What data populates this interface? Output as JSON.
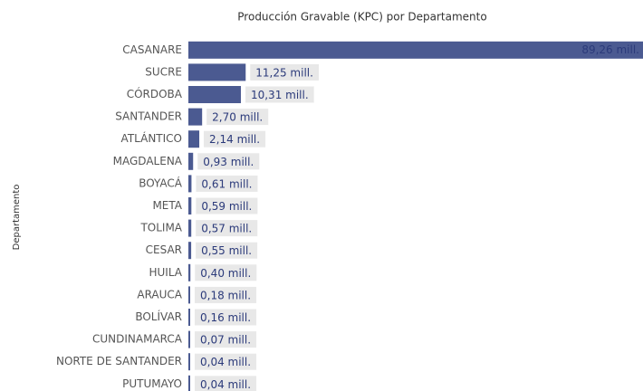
{
  "chart_data": {
    "type": "bar",
    "orientation": "horizontal",
    "title": "Producción Gravable (KPC) por Departamento",
    "y_label": "Departamento",
    "categories": [
      "CASANARE",
      "SUCRE",
      "CÓRDOBA",
      "SANTANDER",
      "ATLÁNTICO",
      "MAGDALENA",
      "BOYACÁ",
      "META",
      "TOLIMA",
      "CESAR",
      "HUILA",
      "ARAUCA",
      "BOLÍVAR",
      "CUNDINAMARCA",
      "NORTE DE SANTANDER",
      "PUTUMAYO"
    ],
    "values": [
      89.26,
      11.25,
      10.31,
      2.7,
      2.14,
      0.93,
      0.61,
      0.59,
      0.57,
      0.55,
      0.4,
      0.18,
      0.16,
      0.07,
      0.04,
      0.04
    ],
    "value_labels": [
      "89,26 mill.",
      "11,25 mill.",
      "10,31 mill.",
      "2,70 mill.",
      "2,14 mill.",
      "0,93 mill.",
      "0,61 mill.",
      "0,59 mill.",
      "0,57 mill.",
      "0,55 mill.",
      "0,40 mill.",
      "0,18 mill.",
      "0,16 mill.",
      "0,07 mill.",
      "0,04 mill.",
      "0,04 mill."
    ],
    "color": "#4b5a91"
  }
}
